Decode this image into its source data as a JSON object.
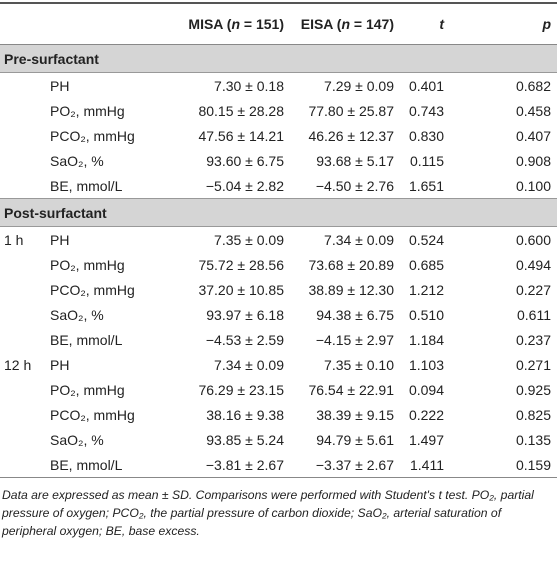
{
  "table": {
    "header": [
      {
        "pre": "MISA (",
        "var": "n",
        "post": " = 151)"
      },
      {
        "pre": "EISA (",
        "var": "n",
        "post": " = 147)"
      },
      {
        "var": "t"
      },
      {
        "var": "p"
      }
    ],
    "sections": [
      {
        "title": "Pre-surfactant",
        "groups": [
          {
            "rows": [
              [
                "PH",
                "7.30 ± 0.18",
                "7.29 ± 0.09",
                "0.401",
                "0.682"
              ],
              [
                "PO₂, mmHg",
                "80.15 ± 28.28",
                "77.80 ± 25.87",
                "0.743",
                "0.458"
              ],
              [
                "PCO₂, mmHg",
                "47.56 ± 14.21",
                "46.26 ± 12.37",
                "0.830",
                "0.407"
              ],
              [
                "SaO₂, %",
                "93.60 ± 6.75",
                "93.68 ± 5.17",
                "0.115",
                "0.908"
              ],
              [
                "BE, mmol/L",
                "−5.04 ± 2.82",
                "−4.50 ± 2.76",
                "1.651",
                "0.100"
              ]
            ]
          }
        ]
      },
      {
        "title": "Post-surfactant",
        "groups": [
          {
            "time": "1 h",
            "rows": [
              [
                "PH",
                "7.35 ± 0.09",
                "7.34 ± 0.09",
                "0.524",
                "0.600"
              ],
              [
                "PO₂, mmHg",
                "75.72 ± 28.56",
                "73.68 ± 20.89",
                "0.685",
                "0.494"
              ],
              [
                "PCO₂, mmHg",
                "37.20 ± 10.85",
                "38.89 ± 12.30",
                "1.212",
                "0.227"
              ],
              [
                "SaO₂, %",
                "93.97 ± 6.18",
                "94.38 ± 6.75",
                "0.510",
                "0.611"
              ],
              [
                "BE, mmol/L",
                "−4.53 ± 2.59",
                "−4.15 ± 2.97",
                "1.184",
                "0.237"
              ]
            ]
          },
          {
            "time": "12 h",
            "rows": [
              [
                "PH",
                "7.34 ± 0.09",
                "7.35 ± 0.10",
                "1.103",
                "0.271"
              ],
              [
                "PO₂, mmHg",
                "76.29 ± 23.15",
                "76.54 ± 22.91",
                "0.094",
                "0.925"
              ],
              [
                "PCO₂, mmHg",
                "38.16 ± 9.38",
                "38.39 ± 9.15",
                "0.222",
                "0.825"
              ],
              [
                "SaO₂, %",
                "93.85 ± 5.24",
                "94.79 ± 5.61",
                "1.497",
                "0.135"
              ],
              [
                "BE, mmol/L",
                "−3.81 ± 2.67",
                "−3.37 ± 2.67",
                "1.411",
                "0.159"
              ]
            ]
          }
        ]
      }
    ],
    "footnote": "Data are expressed as mean ± SD. Comparisons were performed with Student's t test. PO₂, partial pressure of oxygen; PCO₂, the partial pressure of carbon dioxide; SaO₂, arterial saturation of peripheral oxygen; BE, base excess."
  }
}
